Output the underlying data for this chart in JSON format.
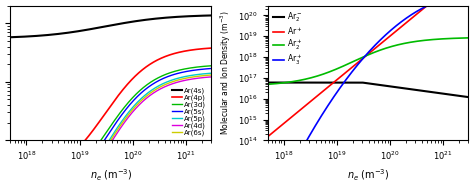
{
  "xlim": [
    5e+17,
    3e+21
  ],
  "left_ylim": [
    100000000000000.0,
    2e+16
  ],
  "right_ylim": [
    100000000000000.0,
    3e+20
  ],
  "xlabel": "$n_e$ (m$^{-3}$)",
  "right_ylabel": "Molecular and Ion Density (m$^{-3}$)",
  "left_series": [
    {
      "label": "Ar(4s)",
      "color": "#000000",
      "lw": 1.5
    },
    {
      "label": "Ar(4p)",
      "color": "#ff0000",
      "lw": 1.2
    },
    {
      "label": "Ar(3d)",
      "color": "#00bb00",
      "lw": 1.0
    },
    {
      "label": "Ar(5s)",
      "color": "#0000ff",
      "lw": 1.0
    },
    {
      "label": "Ar(5p)",
      "color": "#00cccc",
      "lw": 1.0
    },
    {
      "label": "Ar(4d)",
      "color": "#dd00dd",
      "lw": 1.0
    },
    {
      "label": "Ar(6s)",
      "color": "#cccc00",
      "lw": 1.0
    }
  ],
  "right_series": [
    {
      "label": "$\\mathrm{Ar_2^-}$",
      "color": "#000000",
      "lw": 1.5
    },
    {
      "label": "$\\mathrm{Ar^+}$",
      "color": "#ff0000",
      "lw": 1.2
    },
    {
      "label": "$\\mathrm{Ar_2^+}$",
      "color": "#00bb00",
      "lw": 1.2
    },
    {
      "label": "$\\mathrm{Ar_3^+}$",
      "color": "#0000ff",
      "lw": 1.2
    }
  ]
}
